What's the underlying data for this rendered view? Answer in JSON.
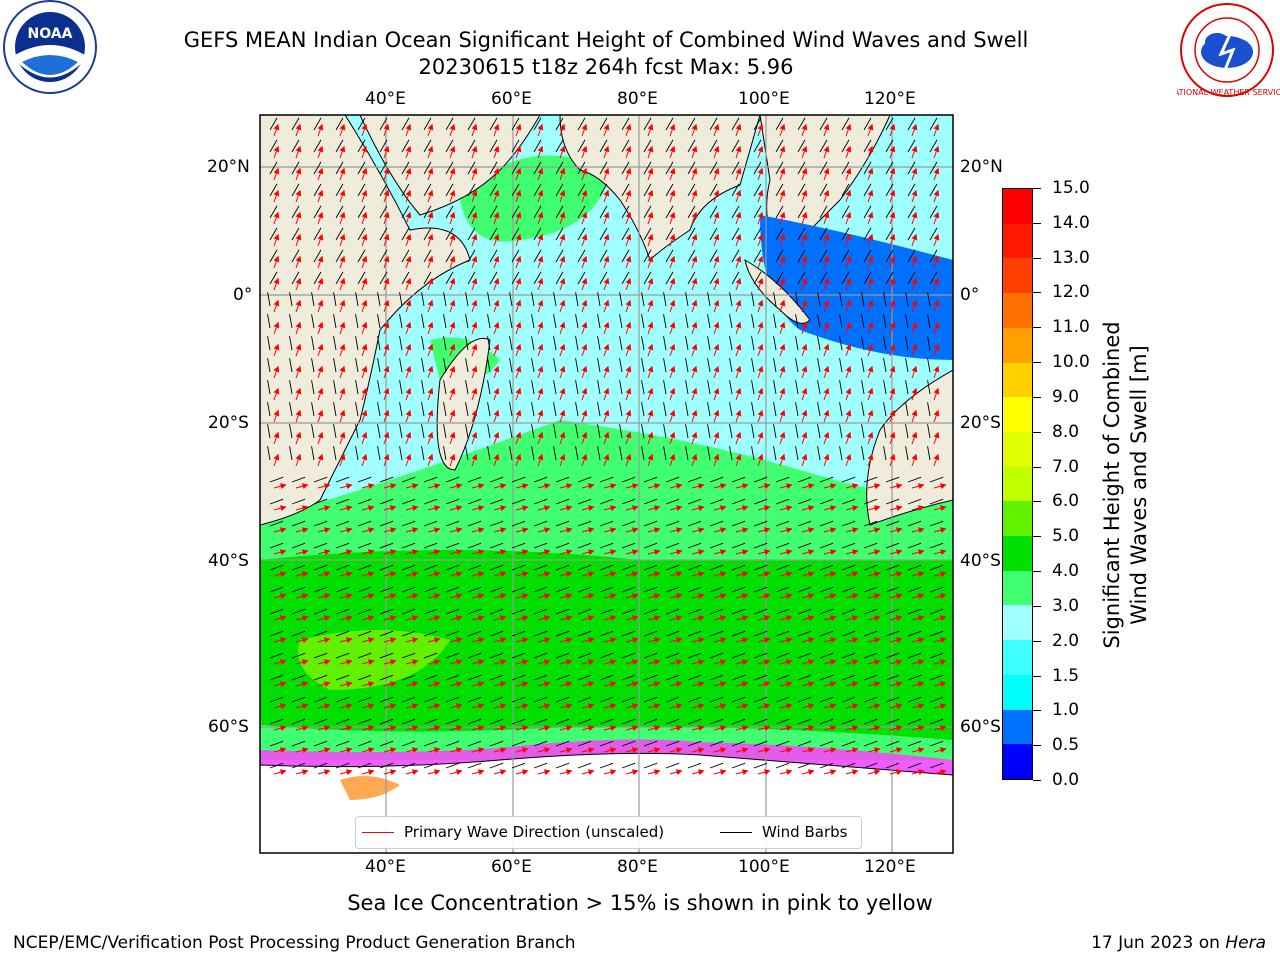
{
  "header": {
    "title_line1": "GEFS MEAN Indian Ocean Significant Height of Combined Wind Waves and Swell",
    "title_line2": "20230615 t18z 264h fcst   Max: 5.96"
  },
  "logos": {
    "left": "NOAA",
    "right": "NATIONAL WEATHER SERVICE"
  },
  "map": {
    "lon_labels_top": [
      "40°E",
      "60°E",
      "80°E",
      "100°E",
      "120°E"
    ],
    "lon_labels_bottom": [
      "40°E",
      "60°E",
      "80°E",
      "100°E",
      "120°E"
    ],
    "lat_labels_left": [
      "20°N",
      "0°",
      "20°S",
      "40°S",
      "60°S"
    ],
    "lat_labels_right": [
      "20°N",
      "0°",
      "20°S",
      "40°S",
      "60°S"
    ],
    "legend": {
      "wave_direction": "Primary Wave Direction (unscaled)",
      "wind_barbs": "Wind Barbs",
      "wave_color": "#ff0000",
      "barb_color": "#000000"
    },
    "land_color": "#efecdc",
    "ice_color": "#ffffff"
  },
  "colorbar": {
    "title_line1": "Significant Height of Combined",
    "title_line2": "Wind Waves and Swell [m]",
    "ticks": [
      "15.0",
      "14.0",
      "13.0",
      "12.0",
      "11.0",
      "10.0",
      "9.0",
      "8.0",
      "7.0",
      "6.0",
      "5.0",
      "4.0",
      "3.0",
      "2.0",
      "1.5",
      "1.0",
      "0.5",
      "0.0"
    ],
    "colors_bottom_to_top": [
      "#0000ff",
      "#0070ff",
      "#00ffff",
      "#40ffff",
      "#a0ffff",
      "#40ff70",
      "#00e000",
      "#60f000",
      "#c0ff00",
      "#e0ff00",
      "#ffff00",
      "#ffd000",
      "#ffa000",
      "#ff7000",
      "#ff4000",
      "#ff1800",
      "#ff0000"
    ]
  },
  "footer": {
    "sea_ice_note": "Sea Ice Concentration > 15% is shown in pink to yellow",
    "branch": "NCEP/EMC/Verification Post Processing Product Generation Branch",
    "date": "17 Jun 2023 on",
    "host": "Hera"
  }
}
